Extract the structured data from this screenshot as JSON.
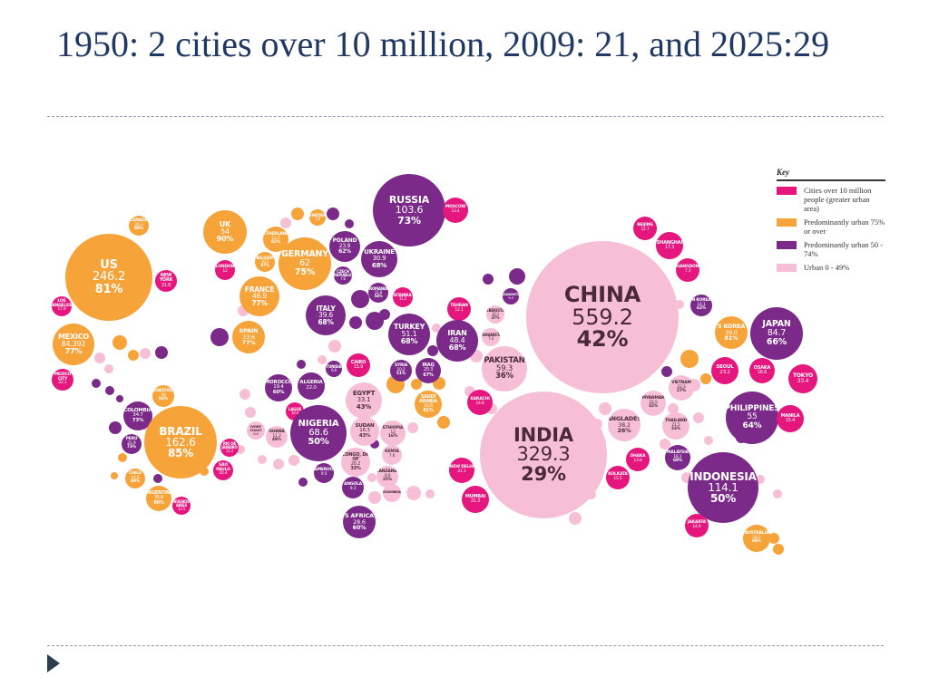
{
  "slide": {
    "title": "1950: 2 cities over 10 million, 2009: 21, and 2025:29"
  },
  "colors": {
    "city": "#e5177e",
    "urban_75_plus": "#f6a33a",
    "urban_50_74": "#7b2a8a",
    "urban_0_49": "#f7bfd6"
  },
  "key": {
    "title": "Key",
    "items": [
      {
        "label": "Cities over 10 million people (greater urban area)",
        "color": "#e5177e"
      },
      {
        "label": "Predominantly urban 75% or over",
        "color": "#f6a33a"
      },
      {
        "label": "Predominantly urban 50 - 74%",
        "color": "#7b2a8a"
      },
      {
        "label": "Urban 0 - 49%",
        "color": "#f7bfd6"
      }
    ]
  },
  "bubbles": [
    {
      "name": "US",
      "value": "246.2",
      "pct": "81%",
      "cat": "urban_75_plus"
    },
    {
      "name": "CANADA",
      "value": "26.3",
      "pct": "80%",
      "cat": "urban_75_plus"
    },
    {
      "name": "NEW YORK",
      "value": "21.8",
      "cat": "city"
    },
    {
      "name": "LOS ANGELES",
      "value": "17.9",
      "cat": "city"
    },
    {
      "name": "MEXICO",
      "value": "84.392",
      "pct": "77%",
      "cat": "urban_75_plus"
    },
    {
      "name": "MEXICO CITY",
      "value": "22.1",
      "cat": "city"
    },
    {
      "name": "COLOMBIA",
      "value": "34.7",
      "pct": "73%",
      "cat": "urban_50_74"
    },
    {
      "name": "VENEZUELA",
      "value": "26",
      "pct": "94%",
      "cat": "urban_75_plus"
    },
    {
      "name": "PERU",
      "value": "21.9",
      "pct": "73%",
      "cat": "urban_50_74"
    },
    {
      "name": "BRAZIL",
      "value": "162.6",
      "pct": "85%",
      "cat": "urban_75_plus"
    },
    {
      "name": "CHILE",
      "value": "14.5",
      "pct": "88%",
      "cat": "urban_75_plus"
    },
    {
      "name": "ARGENTINA",
      "value": "35.6",
      "pct": "90%",
      "cat": "urban_75_plus"
    },
    {
      "name": "RIO DE JANEIRO",
      "value": "12.2",
      "cat": "city"
    },
    {
      "name": "SÃO PAULO",
      "value": "20.4",
      "cat": "city"
    },
    {
      "name": "BUENOS AIRES",
      "value": "13.5",
      "cat": "city"
    },
    {
      "name": "UK",
      "value": "54",
      "pct": "90%",
      "cat": "urban_75_plus"
    },
    {
      "name": "LONDON",
      "value": "12",
      "cat": "city"
    },
    {
      "name": "FRANCE",
      "value": "46.9",
      "pct": "77%",
      "cat": "urban_75_plus"
    },
    {
      "name": "SPAIN",
      "value": "33.6",
      "pct": "77%",
      "cat": "urban_75_plus"
    },
    {
      "name": "NETHERLANDS",
      "value": "13.3",
      "pct": "82%",
      "cat": "urban_75_plus"
    },
    {
      "name": "BELGIUM",
      "value": "10.2",
      "pct": "97%",
      "cat": "urban_75_plus"
    },
    {
      "name": "GERMANY",
      "value": "62",
      "pct": "75%",
      "cat": "urban_75_plus"
    },
    {
      "name": "SWEDEN",
      "value": "7.8",
      "cat": "urban_75_plus"
    },
    {
      "name": "POLAND",
      "value": "23.9",
      "pct": "62%",
      "cat": "urban_50_74"
    },
    {
      "name": "CZECH REPUBLIC",
      "value": "7.6",
      "cat": "urban_50_74"
    },
    {
      "name": "ITALY",
      "value": "39.6",
      "pct": "68%",
      "cat": "urban_50_74"
    },
    {
      "name": "RUSSIA",
      "value": "103.6",
      "pct": "73%",
      "cat": "urban_50_74"
    },
    {
      "name": "MOSCOW",
      "value": "13.4",
      "cat": "city"
    },
    {
      "name": "UKRAINE",
      "value": "30.9",
      "pct": "68%",
      "cat": "urban_50_74"
    },
    {
      "name": "ROMANIA",
      "value": "11.6",
      "pct": "54%",
      "cat": "urban_50_74"
    },
    {
      "name": "ISTANBUL",
      "value": "11.2",
      "cat": "city"
    },
    {
      "name": "TURKEY",
      "value": "51.1",
      "pct": "68%",
      "cat": "urban_50_74"
    },
    {
      "name": "TEHRAN",
      "value": "12.1",
      "cat": "city"
    },
    {
      "name": "IRAN",
      "value": "48.4",
      "pct": "68%",
      "cat": "urban_50_74"
    },
    {
      "name": "IRAQ",
      "value": "20.3",
      "pct": "67%",
      "cat": "urban_50_74"
    },
    {
      "name": "SYRIA",
      "value": "10.2",
      "pct": "51%",
      "cat": "urban_50_74"
    },
    {
      "name": "UZBEKISTAN",
      "value": "10.1",
      "pct": "37%",
      "cat": "urban_0_49"
    },
    {
      "name": "KAZAKHSTAN",
      "value": "9.4",
      "cat": "urban_50_74"
    },
    {
      "name": "AFGHANISTAN",
      "value": "7.4",
      "cat": "urban_0_49"
    },
    {
      "name": "PAKISTAN",
      "value": "59.3",
      "pct": "36%",
      "cat": "urban_0_49"
    },
    {
      "name": "KARACHI",
      "value": "14.8",
      "cat": "city"
    },
    {
      "name": "SAUDI ARABIA",
      "value": "20.8",
      "pct": "81%",
      "cat": "urban_75_plus"
    },
    {
      "name": "CAIRO",
      "value": "15.9",
      "cat": "city"
    },
    {
      "name": "EGYPT",
      "value": "33.1",
      "pct": "43%",
      "cat": "urban_0_49"
    },
    {
      "name": "TUNISIA",
      "value": "6.6",
      "cat": "urban_50_74"
    },
    {
      "name": "ALGERIA",
      "value": "22.0",
      "cat": "urban_50_74"
    },
    {
      "name": "MOROCCO",
      "value": "19.4",
      "pct": "60%",
      "cat": "urban_50_74"
    },
    {
      "name": "LAGOS",
      "value": "10.6",
      "cat": "city"
    },
    {
      "name": "NIGERIA",
      "value": "68.6",
      "pct": "50%",
      "cat": "urban_50_74"
    },
    {
      "name": "IVORY COAST",
      "value": "8.6",
      "cat": "urban_0_49"
    },
    {
      "name": "GHANA",
      "value": "11.3",
      "pct": "49%",
      "cat": "urban_0_49"
    },
    {
      "name": "SUDAN",
      "value": "16.3",
      "pct": "43%",
      "cat": "urban_0_49"
    },
    {
      "name": "ETHIOPIA",
      "value": "13",
      "pct": "16%",
      "cat": "urban_0_49"
    },
    {
      "name": "KENYA",
      "value": "7.6",
      "cat": "urban_0_49"
    },
    {
      "name": "CONGO, DR OF",
      "value": "20.2",
      "pct": "33%",
      "cat": "urban_0_49"
    },
    {
      "name": "CAMEROON",
      "value": "9.5",
      "cat": "urban_50_74"
    },
    {
      "name": "TANZANIA",
      "value": "9.9",
      "pct": "25%",
      "cat": "urban_0_49"
    },
    {
      "name": "ANGOLA",
      "value": "9.3",
      "cat": "urban_50_74"
    },
    {
      "name": "MOZAMBIQUE",
      "value": "",
      "cat": "urban_0_49"
    },
    {
      "name": "S AFRICA",
      "value": "28.6",
      "pct": "60%",
      "cat": "urban_50_74"
    },
    {
      "name": "CHINA",
      "value": "559.2",
      "pct": "42%",
      "cat": "urban_0_49"
    },
    {
      "name": "BEIJING",
      "value": "12.7",
      "cat": "city"
    },
    {
      "name": "SHANGHAI",
      "value": "17.3",
      "cat": "city"
    },
    {
      "name": "GUANGDONG",
      "value": "7.3",
      "cat": "city"
    },
    {
      "name": "N KOREA",
      "value": "14.1",
      "pct": "62%",
      "cat": "urban_50_74"
    },
    {
      "name": "S KOREA",
      "value": "39.0",
      "pct": "81%",
      "cat": "urban_75_plus"
    },
    {
      "name": "SEOUL",
      "value": "23.2",
      "cat": "city"
    },
    {
      "name": "JAPAN",
      "value": "84.7",
      "pct": "66%",
      "cat": "urban_50_74"
    },
    {
      "name": "OSAKA",
      "value": "16.6",
      "cat": "city"
    },
    {
      "name": "TOKYO",
      "value": "33.4",
      "cat": "city"
    },
    {
      "name": "INDIA",
      "value": "329.3",
      "pct": "29%",
      "cat": "urban_0_49"
    },
    {
      "name": "NEW DELHI",
      "value": "21.1",
      "cat": "city"
    },
    {
      "name": "MUMBAI",
      "value": "21.3",
      "cat": "city"
    },
    {
      "name": "KOLKATA",
      "value": "15.5",
      "cat": "city"
    },
    {
      "name": "DHAKA",
      "value": "13.8",
      "cat": "city"
    },
    {
      "name": "BANGLADESH",
      "value": "38.2",
      "pct": "26%",
      "cat": "urban_0_49"
    },
    {
      "name": "MYANMAR",
      "value": "16.5",
      "pct": "32%",
      "cat": "urban_0_49"
    },
    {
      "name": "VIETNAM",
      "value": "23.3",
      "pct": "27%",
      "cat": "urban_0_49"
    },
    {
      "name": "THAILAND",
      "value": "21.5",
      "pct": "33%",
      "cat": "urban_0_49"
    },
    {
      "name": "MALAYSIA",
      "value": "18.1",
      "pct": "69%",
      "cat": "urban_50_74"
    },
    {
      "name": "PHILIPPINES",
      "value": "55",
      "pct": "64%",
      "cat": "urban_50_74"
    },
    {
      "name": "MANILA",
      "value": "15.4",
      "cat": "city"
    },
    {
      "name": "INDONESIA",
      "value": "114.1",
      "pct": "50%",
      "cat": "urban_50_74"
    },
    {
      "name": "JAKARTA",
      "value": "14.9",
      "cat": "city"
    },
    {
      "name": "AUSTRALIA",
      "value": "18.1",
      "pct": "88%",
      "cat": "urban_75_plus"
    }
  ]
}
